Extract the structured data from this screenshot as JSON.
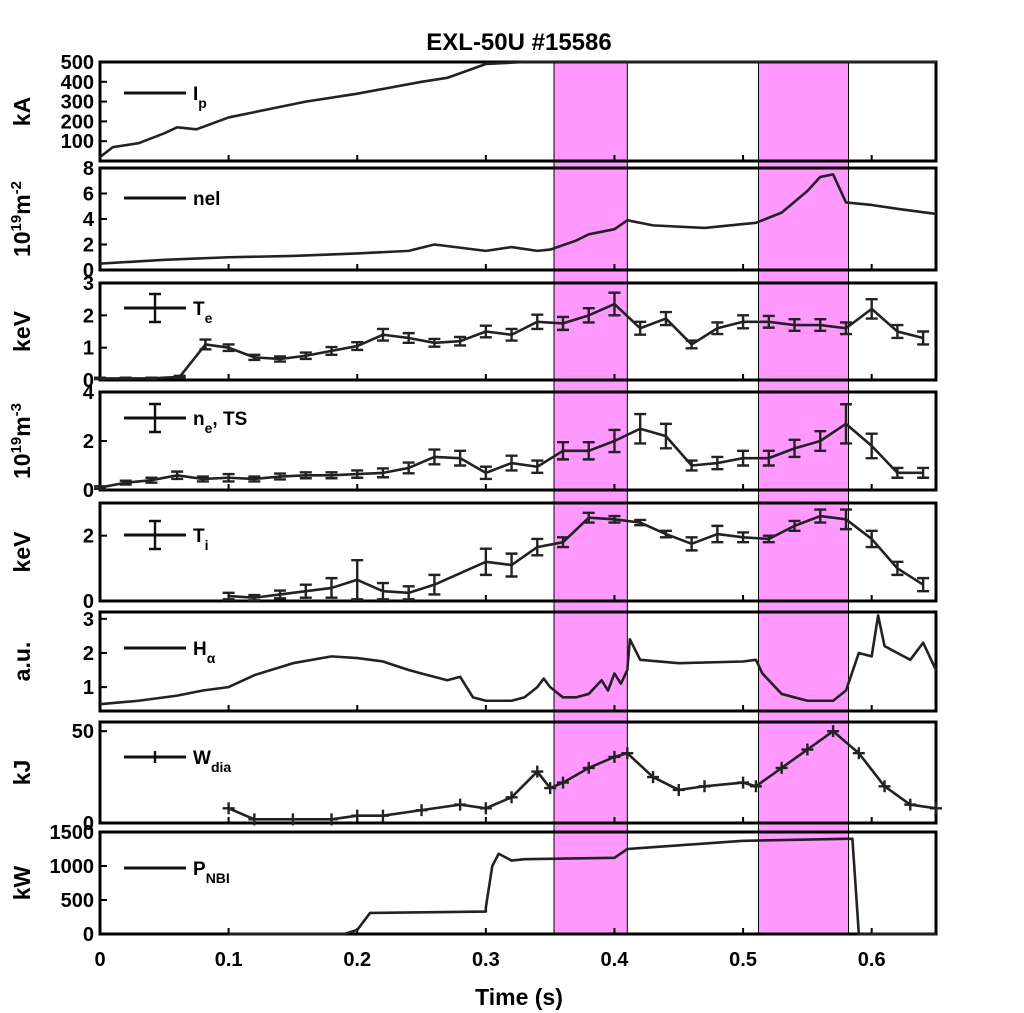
{
  "chart_data": {
    "type": "line",
    "title": "EXL-50U #15586",
    "xlabel": "Time (s)",
    "xlim": [
      0,
      0.65
    ],
    "xticks": [
      "0",
      "0.1",
      "0.2",
      "0.3",
      "0.4",
      "0.5",
      "0.6"
    ],
    "xtick_values": [
      0,
      0.1,
      0.2,
      0.3,
      0.4,
      0.5,
      0.6
    ],
    "highlight_color": "#ff99ff",
    "highlights": [
      [
        0.353,
        0.41
      ],
      [
        0.512,
        0.582
      ]
    ],
    "panels": [
      {
        "ylabel": "kA",
        "ylabel_sup": "",
        "legend": "I",
        "legend_sub": "p",
        "ylim": [
          0,
          500
        ],
        "yticks": [
          "100",
          "200",
          "300",
          "400",
          "500"
        ],
        "ytick_values": [
          100,
          200,
          300,
          400,
          500
        ],
        "style": "line",
        "x": [
          0,
          0.01,
          0.03,
          0.05,
          0.06,
          0.075,
          0.1,
          0.13,
          0.16,
          0.2,
          0.25,
          0.27,
          0.3,
          0.33,
          0.4,
          0.5,
          0.6,
          0.65
        ],
        "y": [
          20,
          70,
          90,
          140,
          170,
          160,
          220,
          260,
          300,
          340,
          400,
          420,
          490,
          500,
          500,
          500,
          500,
          500
        ]
      },
      {
        "ylabel": "10",
        "ylabel_sup": "19",
        "ylabel_tail": "m",
        "ylabel_tail_sup": "-2",
        "legend": "nel",
        "legend_sub": "",
        "ylim": [
          0,
          8
        ],
        "yticks": [
          "0",
          "2",
          "4",
          "6",
          "8"
        ],
        "ytick_values": [
          0,
          2,
          4,
          6,
          8
        ],
        "style": "line",
        "x": [
          0,
          0.05,
          0.1,
          0.15,
          0.2,
          0.24,
          0.26,
          0.3,
          0.32,
          0.34,
          0.35,
          0.37,
          0.38,
          0.4,
          0.41,
          0.43,
          0.47,
          0.5,
          0.51,
          0.53,
          0.55,
          0.56,
          0.57,
          0.58,
          0.6,
          0.62,
          0.65
        ],
        "y": [
          0.5,
          0.8,
          1.0,
          1.1,
          1.3,
          1.5,
          2.0,
          1.5,
          1.8,
          1.5,
          1.6,
          2.3,
          2.8,
          3.2,
          3.9,
          3.5,
          3.3,
          3.6,
          3.7,
          4.5,
          6.2,
          7.3,
          7.5,
          5.3,
          5.1,
          4.8,
          4.4
        ]
      },
      {
        "ylabel": "keV",
        "ylabel_sup": "",
        "legend": "T",
        "legend_sub": "e",
        "ylim": [
          0,
          3
        ],
        "yticks": [
          "0",
          "1",
          "2",
          "3"
        ],
        "ytick_values": [
          0,
          1,
          2,
          3
        ],
        "style": "errorbar",
        "x": [
          0,
          0.02,
          0.04,
          0.062,
          0.082,
          0.1,
          0.12,
          0.14,
          0.16,
          0.18,
          0.2,
          0.22,
          0.24,
          0.26,
          0.28,
          0.3,
          0.32,
          0.34,
          0.36,
          0.38,
          0.4,
          0.42,
          0.44,
          0.46,
          0.48,
          0.5,
          0.52,
          0.54,
          0.56,
          0.58,
          0.6,
          0.62,
          0.64
        ],
        "y": [
          0.05,
          0.05,
          0.05,
          0.1,
          1.1,
          1.0,
          0.7,
          0.65,
          0.75,
          0.9,
          1.05,
          1.4,
          1.3,
          1.15,
          1.2,
          1.5,
          1.4,
          1.8,
          1.75,
          2.0,
          2.35,
          1.6,
          1.9,
          1.1,
          1.6,
          1.8,
          1.8,
          1.7,
          1.7,
          1.6,
          2.2,
          1.5,
          1.3
        ],
        "err": [
          0.02,
          0.02,
          0.02,
          0.03,
          0.15,
          0.1,
          0.08,
          0.08,
          0.1,
          0.12,
          0.12,
          0.18,
          0.15,
          0.12,
          0.13,
          0.18,
          0.18,
          0.22,
          0.2,
          0.22,
          0.35,
          0.2,
          0.2,
          0.12,
          0.18,
          0.2,
          0.18,
          0.18,
          0.18,
          0.18,
          0.3,
          0.2,
          0.2
        ]
      },
      {
        "ylabel": "10",
        "ylabel_sup": "19",
        "ylabel_tail": "m",
        "ylabel_tail_sup": "-3",
        "legend": "n",
        "legend_sub": "e",
        "legend_tail": ", TS",
        "ylim": [
          0,
          4
        ],
        "yticks": [
          "0",
          "2",
          "4"
        ],
        "ytick_values": [
          0,
          2,
          4
        ],
        "style": "errorbar",
        "x": [
          0,
          0.02,
          0.04,
          0.06,
          0.08,
          0.1,
          0.12,
          0.14,
          0.16,
          0.18,
          0.2,
          0.22,
          0.24,
          0.26,
          0.28,
          0.3,
          0.32,
          0.34,
          0.36,
          0.38,
          0.4,
          0.42,
          0.44,
          0.46,
          0.48,
          0.5,
          0.52,
          0.54,
          0.56,
          0.58,
          0.6,
          0.62,
          0.64
        ],
        "y": [
          0.1,
          0.3,
          0.4,
          0.6,
          0.45,
          0.5,
          0.45,
          0.55,
          0.6,
          0.6,
          0.65,
          0.7,
          0.9,
          1.35,
          1.3,
          0.7,
          1.1,
          0.95,
          1.6,
          1.6,
          2.0,
          2.5,
          2.2,
          1.0,
          1.1,
          1.3,
          1.3,
          1.7,
          2.0,
          2.7,
          1.8,
          0.7,
          0.7
        ],
        "err": [
          0.05,
          0.08,
          0.1,
          0.15,
          0.1,
          0.15,
          0.1,
          0.12,
          0.12,
          0.12,
          0.15,
          0.18,
          0.22,
          0.3,
          0.3,
          0.25,
          0.3,
          0.25,
          0.35,
          0.35,
          0.45,
          0.6,
          0.5,
          0.2,
          0.25,
          0.3,
          0.3,
          0.35,
          0.4,
          0.8,
          0.5,
          0.2,
          0.2
        ]
      },
      {
        "ylabel": "keV",
        "ylabel_sup": "",
        "legend": "T",
        "legend_sub": "i",
        "ylim": [
          0,
          3
        ],
        "yticks": [
          "0",
          "2"
        ],
        "ytick_values": [
          0,
          2
        ],
        "style": "errorbar",
        "x": [
          0.1,
          0.12,
          0.14,
          0.16,
          0.18,
          0.2,
          0.22,
          0.24,
          0.26,
          0.3,
          0.32,
          0.34,
          0.36,
          0.38,
          0.4,
          0.42,
          0.44,
          0.46,
          0.48,
          0.5,
          0.52,
          0.54,
          0.56,
          0.58,
          0.6,
          0.62,
          0.64
        ],
        "y": [
          0.15,
          0.1,
          0.2,
          0.3,
          0.4,
          0.65,
          0.3,
          0.25,
          0.5,
          1.2,
          1.1,
          1.65,
          1.8,
          2.55,
          2.5,
          2.4,
          2.05,
          1.75,
          2.05,
          1.95,
          1.9,
          2.3,
          2.6,
          2.5,
          1.9,
          1.0,
          0.5
        ],
        "err": [
          0.1,
          0.08,
          0.12,
          0.2,
          0.3,
          0.6,
          0.25,
          0.2,
          0.3,
          0.4,
          0.35,
          0.25,
          0.15,
          0.15,
          0.1,
          0.08,
          0.1,
          0.2,
          0.25,
          0.15,
          0.1,
          0.15,
          0.2,
          0.3,
          0.25,
          0.2,
          0.2
        ]
      },
      {
        "ylabel": "a.u.",
        "ylabel_sup": "",
        "legend": "H",
        "legend_sub": "α",
        "ylim": [
          0.3,
          3.2
        ],
        "yticks": [
          "1",
          "2",
          "3"
        ],
        "ytick_values": [
          1,
          2,
          3
        ],
        "style": "line",
        "x": [
          0,
          0.03,
          0.06,
          0.08,
          0.1,
          0.12,
          0.15,
          0.18,
          0.2,
          0.22,
          0.24,
          0.25,
          0.27,
          0.28,
          0.29,
          0.3,
          0.32,
          0.33,
          0.34,
          0.345,
          0.35,
          0.36,
          0.37,
          0.38,
          0.39,
          0.395,
          0.4,
          0.405,
          0.41,
          0.412,
          0.42,
          0.45,
          0.5,
          0.51,
          0.515,
          0.53,
          0.55,
          0.57,
          0.58,
          0.59,
          0.6,
          0.605,
          0.61,
          0.62,
          0.63,
          0.64,
          0.65
        ],
        "y": [
          0.5,
          0.6,
          0.75,
          0.9,
          1.0,
          1.35,
          1.7,
          1.9,
          1.85,
          1.75,
          1.5,
          1.4,
          1.2,
          1.3,
          0.7,
          0.6,
          0.6,
          0.7,
          1.0,
          1.25,
          1.0,
          0.7,
          0.7,
          0.8,
          1.2,
          0.9,
          1.4,
          1.1,
          1.5,
          2.4,
          1.8,
          1.7,
          1.75,
          1.8,
          1.4,
          0.8,
          0.6,
          0.6,
          0.9,
          2.0,
          1.9,
          3.1,
          2.2,
          2.0,
          1.8,
          2.3,
          1.5
        ]
      },
      {
        "ylabel": "kJ",
        "ylabel_sup": "",
        "legend": "W",
        "legend_sub": "dia",
        "ylim": [
          0,
          55
        ],
        "yticks": [
          "0",
          "50"
        ],
        "ytick_values": [
          0,
          50
        ],
        "style": "plus",
        "x": [
          0.1,
          0.12,
          0.15,
          0.18,
          0.2,
          0.22,
          0.25,
          0.28,
          0.3,
          0.32,
          0.34,
          0.35,
          0.36,
          0.38,
          0.4,
          0.41,
          0.43,
          0.45,
          0.47,
          0.5,
          0.51,
          0.53,
          0.55,
          0.57,
          0.59,
          0.61,
          0.63,
          0.65
        ],
        "y": [
          8,
          2,
          2,
          2,
          4,
          4,
          7,
          10,
          8,
          14,
          28,
          19,
          22,
          30,
          36,
          38,
          25,
          18,
          20,
          22,
          20,
          30,
          40,
          50,
          38,
          20,
          10,
          8
        ]
      },
      {
        "ylabel": "kW",
        "ylabel_sup": "",
        "legend": "P",
        "legend_sub": "NBI",
        "ylim": [
          0,
          1500
        ],
        "yticks": [
          "0",
          "500",
          "1000",
          "1500"
        ],
        "ytick_values": [
          0,
          500,
          1000,
          1500
        ],
        "style": "line",
        "x": [
          0.1,
          0.19,
          0.2,
          0.21,
          0.3,
          0.3,
          0.305,
          0.31,
          0.32,
          0.33,
          0.4,
          0.41,
          0.5,
          0.58,
          0.585,
          0.59,
          0.65
        ],
        "y": [
          0,
          0,
          60,
          310,
          330,
          390,
          1000,
          1180,
          1080,
          1100,
          1120,
          1250,
          1370,
          1400,
          1400,
          0,
          0
        ]
      }
    ]
  }
}
